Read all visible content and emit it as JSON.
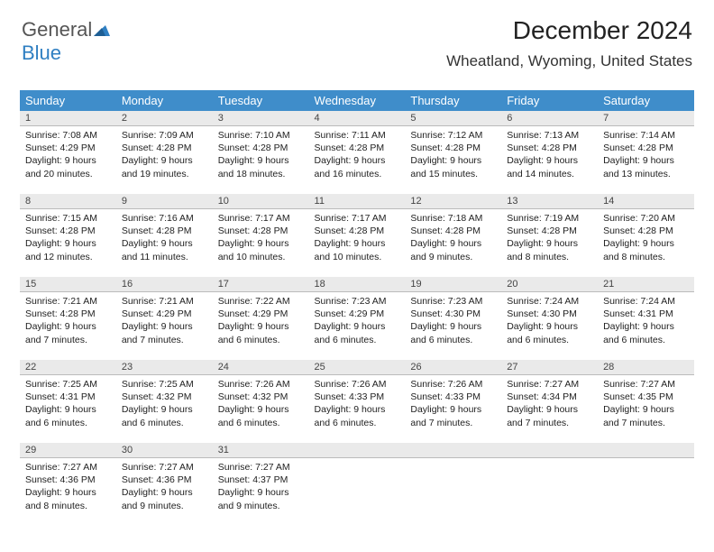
{
  "logo": {
    "text_gray": "General",
    "text_blue": "Blue"
  },
  "title": "December 2024",
  "location": "Wheatland, Wyoming, United States",
  "colors": {
    "header_bg": "#3f8dca",
    "header_fg": "#ffffff",
    "daynum_bg": "#eaeaea",
    "logo_blue": "#2f7fc2",
    "logo_gray": "#555555"
  },
  "days_of_week": [
    "Sunday",
    "Monday",
    "Tuesday",
    "Wednesday",
    "Thursday",
    "Friday",
    "Saturday"
  ],
  "weeks": [
    [
      {
        "n": "1",
        "sunrise": "Sunrise: 7:08 AM",
        "sunset": "Sunset: 4:29 PM",
        "daylight": "Daylight: 9 hours and 20 minutes."
      },
      {
        "n": "2",
        "sunrise": "Sunrise: 7:09 AM",
        "sunset": "Sunset: 4:28 PM",
        "daylight": "Daylight: 9 hours and 19 minutes."
      },
      {
        "n": "3",
        "sunrise": "Sunrise: 7:10 AM",
        "sunset": "Sunset: 4:28 PM",
        "daylight": "Daylight: 9 hours and 18 minutes."
      },
      {
        "n": "4",
        "sunrise": "Sunrise: 7:11 AM",
        "sunset": "Sunset: 4:28 PM",
        "daylight": "Daylight: 9 hours and 16 minutes."
      },
      {
        "n": "5",
        "sunrise": "Sunrise: 7:12 AM",
        "sunset": "Sunset: 4:28 PM",
        "daylight": "Daylight: 9 hours and 15 minutes."
      },
      {
        "n": "6",
        "sunrise": "Sunrise: 7:13 AM",
        "sunset": "Sunset: 4:28 PM",
        "daylight": "Daylight: 9 hours and 14 minutes."
      },
      {
        "n": "7",
        "sunrise": "Sunrise: 7:14 AM",
        "sunset": "Sunset: 4:28 PM",
        "daylight": "Daylight: 9 hours and 13 minutes."
      }
    ],
    [
      {
        "n": "8",
        "sunrise": "Sunrise: 7:15 AM",
        "sunset": "Sunset: 4:28 PM",
        "daylight": "Daylight: 9 hours and 12 minutes."
      },
      {
        "n": "9",
        "sunrise": "Sunrise: 7:16 AM",
        "sunset": "Sunset: 4:28 PM",
        "daylight": "Daylight: 9 hours and 11 minutes."
      },
      {
        "n": "10",
        "sunrise": "Sunrise: 7:17 AM",
        "sunset": "Sunset: 4:28 PM",
        "daylight": "Daylight: 9 hours and 10 minutes."
      },
      {
        "n": "11",
        "sunrise": "Sunrise: 7:17 AM",
        "sunset": "Sunset: 4:28 PM",
        "daylight": "Daylight: 9 hours and 10 minutes."
      },
      {
        "n": "12",
        "sunrise": "Sunrise: 7:18 AM",
        "sunset": "Sunset: 4:28 PM",
        "daylight": "Daylight: 9 hours and 9 minutes."
      },
      {
        "n": "13",
        "sunrise": "Sunrise: 7:19 AM",
        "sunset": "Sunset: 4:28 PM",
        "daylight": "Daylight: 9 hours and 8 minutes."
      },
      {
        "n": "14",
        "sunrise": "Sunrise: 7:20 AM",
        "sunset": "Sunset: 4:28 PM",
        "daylight": "Daylight: 9 hours and 8 minutes."
      }
    ],
    [
      {
        "n": "15",
        "sunrise": "Sunrise: 7:21 AM",
        "sunset": "Sunset: 4:28 PM",
        "daylight": "Daylight: 9 hours and 7 minutes."
      },
      {
        "n": "16",
        "sunrise": "Sunrise: 7:21 AM",
        "sunset": "Sunset: 4:29 PM",
        "daylight": "Daylight: 9 hours and 7 minutes."
      },
      {
        "n": "17",
        "sunrise": "Sunrise: 7:22 AM",
        "sunset": "Sunset: 4:29 PM",
        "daylight": "Daylight: 9 hours and 6 minutes."
      },
      {
        "n": "18",
        "sunrise": "Sunrise: 7:23 AM",
        "sunset": "Sunset: 4:29 PM",
        "daylight": "Daylight: 9 hours and 6 minutes."
      },
      {
        "n": "19",
        "sunrise": "Sunrise: 7:23 AM",
        "sunset": "Sunset: 4:30 PM",
        "daylight": "Daylight: 9 hours and 6 minutes."
      },
      {
        "n": "20",
        "sunrise": "Sunrise: 7:24 AM",
        "sunset": "Sunset: 4:30 PM",
        "daylight": "Daylight: 9 hours and 6 minutes."
      },
      {
        "n": "21",
        "sunrise": "Sunrise: 7:24 AM",
        "sunset": "Sunset: 4:31 PM",
        "daylight": "Daylight: 9 hours and 6 minutes."
      }
    ],
    [
      {
        "n": "22",
        "sunrise": "Sunrise: 7:25 AM",
        "sunset": "Sunset: 4:31 PM",
        "daylight": "Daylight: 9 hours and 6 minutes."
      },
      {
        "n": "23",
        "sunrise": "Sunrise: 7:25 AM",
        "sunset": "Sunset: 4:32 PM",
        "daylight": "Daylight: 9 hours and 6 minutes."
      },
      {
        "n": "24",
        "sunrise": "Sunrise: 7:26 AM",
        "sunset": "Sunset: 4:32 PM",
        "daylight": "Daylight: 9 hours and 6 minutes."
      },
      {
        "n": "25",
        "sunrise": "Sunrise: 7:26 AM",
        "sunset": "Sunset: 4:33 PM",
        "daylight": "Daylight: 9 hours and 6 minutes."
      },
      {
        "n": "26",
        "sunrise": "Sunrise: 7:26 AM",
        "sunset": "Sunset: 4:33 PM",
        "daylight": "Daylight: 9 hours and 7 minutes."
      },
      {
        "n": "27",
        "sunrise": "Sunrise: 7:27 AM",
        "sunset": "Sunset: 4:34 PM",
        "daylight": "Daylight: 9 hours and 7 minutes."
      },
      {
        "n": "28",
        "sunrise": "Sunrise: 7:27 AM",
        "sunset": "Sunset: 4:35 PM",
        "daylight": "Daylight: 9 hours and 7 minutes."
      }
    ],
    [
      {
        "n": "29",
        "sunrise": "Sunrise: 7:27 AM",
        "sunset": "Sunset: 4:36 PM",
        "daylight": "Daylight: 9 hours and 8 minutes."
      },
      {
        "n": "30",
        "sunrise": "Sunrise: 7:27 AM",
        "sunset": "Sunset: 4:36 PM",
        "daylight": "Daylight: 9 hours and 9 minutes."
      },
      {
        "n": "31",
        "sunrise": "Sunrise: 7:27 AM",
        "sunset": "Sunset: 4:37 PM",
        "daylight": "Daylight: 9 hours and 9 minutes."
      },
      {
        "empty": true
      },
      {
        "empty": true
      },
      {
        "empty": true
      },
      {
        "empty": true
      }
    ]
  ]
}
